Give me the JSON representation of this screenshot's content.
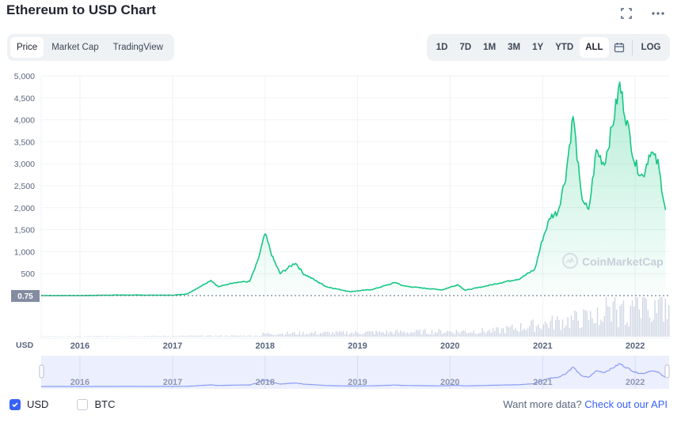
{
  "title": "Ethereum to USD Chart",
  "icons": {
    "fullscreen": "expand-icon",
    "more": "more-icon",
    "calendar": "calendar-icon",
    "watermark": "coinmarketcap-logo-icon"
  },
  "tabs": [
    {
      "label": "Price",
      "active": true
    },
    {
      "label": "Market Cap",
      "active": false
    },
    {
      "label": "TradingView",
      "active": false
    }
  ],
  "ranges": [
    {
      "label": "1D",
      "active": false
    },
    {
      "label": "7D",
      "active": false
    },
    {
      "label": "1M",
      "active": false
    },
    {
      "label": "3M",
      "active": false
    },
    {
      "label": "1Y",
      "active": false
    },
    {
      "label": "YTD",
      "active": false
    },
    {
      "label": "ALL",
      "active": true
    }
  ],
  "log_label": "LOG",
  "watermark": "CoinMarketCap",
  "colors": {
    "line": "#16c784",
    "accent": "#3861fb",
    "volume": "#cfd6e4",
    "navigator": "#8a9df5"
  },
  "chart_data": {
    "type": "area",
    "y_unit_label": "USD",
    "ylim": [
      0,
      5000
    ],
    "y_ticks": [
      "5,000",
      "4,500",
      "4,000",
      "3,500",
      "3,000",
      "2,500",
      "2,000",
      "1,500",
      "1,000",
      "500"
    ],
    "current_value_label": "0.75",
    "x_ticks": [
      "2016",
      "2017",
      "2018",
      "2019",
      "2020",
      "2021",
      "2022"
    ],
    "grid": true,
    "series": [
      {
        "x": [
          "2015-08",
          "2016-01",
          "2016-06",
          "2017-01",
          "2017-03",
          "2017-06",
          "2017-07",
          "2017-09",
          "2017-11",
          "2017-12",
          "2018-01",
          "2018-02",
          "2018-03",
          "2018-05",
          "2018-06",
          "2018-09",
          "2018-12",
          "2019-03",
          "2019-06",
          "2019-07",
          "2019-09",
          "2019-12",
          "2020-02",
          "2020-03",
          "2020-06",
          "2020-09",
          "2020-10",
          "2020-12",
          "2021-01",
          "2021-02",
          "2021-03",
          "2021-04",
          "2021-05",
          "2021-06",
          "2021-07",
          "2021-08",
          "2021-09",
          "2021-10",
          "2021-11",
          "2021-12",
          "2022-01",
          "2022-02",
          "2022-03",
          "2022-04",
          "2022-05"
        ],
        "values": [
          1,
          1,
          12,
          8,
          40,
          350,
          200,
          300,
          320,
          750,
          1400,
          850,
          500,
          750,
          500,
          200,
          90,
          140,
          300,
          220,
          180,
          130,
          250,
          120,
          230,
          350,
          380,
          600,
          1300,
          1800,
          1900,
          2700,
          4100,
          2300,
          1900,
          3300,
          3000,
          3800,
          4800,
          3900,
          3000,
          2700,
          3300,
          3000,
          1950
        ]
      }
    ],
    "volume": "shown"
  },
  "footer": {
    "usd_label": "USD",
    "btc_label": "BTC",
    "usd_checked": true,
    "btc_checked": false,
    "api_text": "Want more data?",
    "api_link": "Check out our API"
  }
}
